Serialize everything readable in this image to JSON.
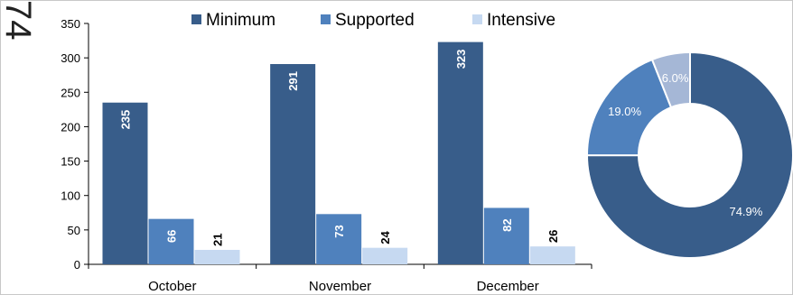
{
  "side_label": "74",
  "chart_data": [
    {
      "type": "bar",
      "categories": [
        "October",
        "November",
        "December"
      ],
      "series": [
        {
          "name": "Minimum",
          "values": [
            235,
            291,
            323
          ],
          "color": "#385d8a"
        },
        {
          "name": "Supported",
          "values": [
            66,
            73,
            82
          ],
          "color": "#4f81bd"
        },
        {
          "name": "Intensive",
          "values": [
            21,
            24,
            26
          ],
          "color": "#c6d9f1"
        }
      ],
      "ylim": [
        0,
        350
      ],
      "yticks": [
        0,
        50,
        100,
        150,
        200,
        250,
        300,
        350
      ],
      "legend_position": "top",
      "grid": false
    },
    {
      "type": "pie",
      "style": "donut",
      "slices": [
        {
          "label": "74.9%",
          "value": 74.9,
          "color": "#385d8a"
        },
        {
          "label": "19.0%",
          "value": 19.0,
          "color": "#4f81bd"
        },
        {
          "label": "6.0%",
          "value": 6.0,
          "color": "#a5b7d6"
        }
      ]
    }
  ]
}
